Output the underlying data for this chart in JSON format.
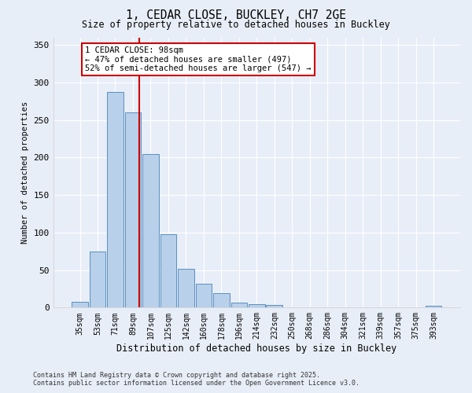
{
  "title_line1": "1, CEDAR CLOSE, BUCKLEY, CH7 2GE",
  "title_line2": "Size of property relative to detached houses in Buckley",
  "xlabel": "Distribution of detached houses by size in Buckley",
  "ylabel": "Number of detached properties",
  "categories": [
    "35sqm",
    "53sqm",
    "71sqm",
    "89sqm",
    "107sqm",
    "125sqm",
    "142sqm",
    "160sqm",
    "178sqm",
    "196sqm",
    "214sqm",
    "232sqm",
    "250sqm",
    "268sqm",
    "286sqm",
    "304sqm",
    "321sqm",
    "339sqm",
    "357sqm",
    "375sqm",
    "393sqm"
  ],
  "bar_values": [
    8,
    75,
    287,
    260,
    204,
    98,
    52,
    32,
    19,
    7,
    5,
    4,
    0,
    0,
    0,
    0,
    0,
    0,
    0,
    0,
    2
  ],
  "bar_color": "#b8d0ea",
  "bar_edge_color": "#5a8fc0",
  "background_color": "#e8eef8",
  "grid_color": "#ffffff",
  "vline_position": 3.35,
  "vline_color": "#cc0000",
  "annotation_text": "1 CEDAR CLOSE: 98sqm\n← 47% of detached houses are smaller (497)\n52% of semi-detached houses are larger (547) →",
  "annotation_box_edgecolor": "#cc0000",
  "ylim": [
    0,
    360
  ],
  "yticks": [
    0,
    50,
    100,
    150,
    200,
    250,
    300,
    350
  ],
  "footer": "Contains HM Land Registry data © Crown copyright and database right 2025.\nContains public sector information licensed under the Open Government Licence v3.0."
}
